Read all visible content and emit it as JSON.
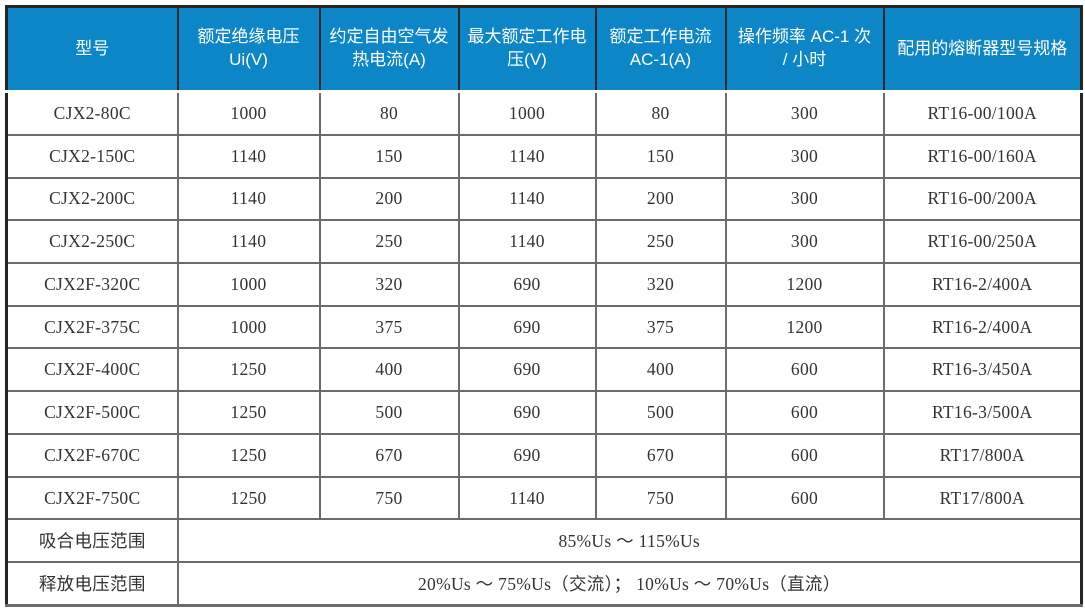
{
  "table": {
    "header": [
      "型号",
      "额定绝缘电压 Ui(V)",
      "约定自由空气发热电流(A)",
      "最大额定工作电压(V)",
      "额定工作电流 AC-1(A)",
      "操作频率 AC-1 次 / 小时",
      "配用的熔断器型号规格"
    ],
    "rows": [
      [
        "CJX2-80C",
        "1000",
        "80",
        "1000",
        "80",
        "300",
        "RT16-00/100A"
      ],
      [
        "CJX2-150C",
        "1140",
        "150",
        "1140",
        "150",
        "300",
        "RT16-00/160A"
      ],
      [
        "CJX2-200C",
        "1140",
        "200",
        "1140",
        "200",
        "300",
        "RT16-00/200A"
      ],
      [
        "CJX2-250C",
        "1140",
        "250",
        "1140",
        "250",
        "300",
        "RT16-00/250A"
      ],
      [
        "CJX2F-320C",
        "1000",
        "320",
        "690",
        "320",
        "1200",
        "RT16-2/400A"
      ],
      [
        "CJX2F-375C",
        "1000",
        "375",
        "690",
        "375",
        "1200",
        "RT16-2/400A"
      ],
      [
        "CJX2F-400C",
        "1250",
        "400",
        "690",
        "400",
        "600",
        "RT16-3/450A"
      ],
      [
        "CJX2F-500C",
        "1250",
        "500",
        "690",
        "500",
        "600",
        "RT16-3/500A"
      ],
      [
        "CJX2F-670C",
        "1250",
        "670",
        "690",
        "670",
        "600",
        "RT17/800A"
      ],
      [
        "CJX2F-750C",
        "1250",
        "750",
        "1140",
        "750",
        "600",
        "RT17/800A"
      ]
    ],
    "footer_rows": [
      {
        "label": "吸合电压范围",
        "value": "85%Us ～ 115%Us"
      },
      {
        "label": "释放电压范围",
        "value": "20%Us ～ 75%Us（交流）； 10%Us ～ 70%Us（直流）"
      }
    ]
  },
  "colors": {
    "header_bg": "#0c86c6",
    "header_text": "#ffffff",
    "body_text": "#333333",
    "grid_line": "#6b6b6b",
    "outer_border": "#262626"
  }
}
